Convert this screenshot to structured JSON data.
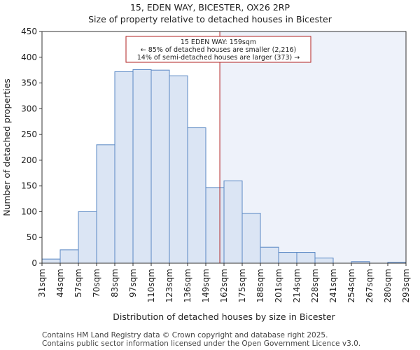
{
  "header": {
    "title": "15, EDEN WAY, BICESTER, OX26 2RP",
    "subtitle": "Size of property relative to detached houses in Bicester"
  },
  "footer": {
    "line1": "Contains HM Land Registry data © Crown copyright and database right 2025.",
    "line2": "Contains public sector information licensed under the Open Government Licence v3.0."
  },
  "chart_data": {
    "type": "bar",
    "xlabel": "Distribution of detached houses by size in Bicester",
    "ylabel": "Number of detached properties",
    "ylim": [
      0,
      450
    ],
    "yticks": [
      0,
      50,
      100,
      150,
      200,
      250,
      300,
      350,
      400,
      450
    ],
    "bin_edges": [
      31,
      44,
      57,
      70,
      83,
      97,
      110,
      123,
      136,
      149,
      162,
      175,
      188,
      201,
      214,
      228,
      241,
      254,
      267,
      280,
      293
    ],
    "tick_labels": [
      "31sqm",
      "44sqm",
      "57sqm",
      "70sqm",
      "83sqm",
      "97sqm",
      "110sqm",
      "123sqm",
      "136sqm",
      "149sqm",
      "162sqm",
      "175sqm",
      "188sqm",
      "201sqm",
      "214sqm",
      "228sqm",
      "241sqm",
      "254sqm",
      "267sqm",
      "280sqm",
      "293sqm"
    ],
    "values": [
      8,
      26,
      100,
      230,
      372,
      376,
      375,
      364,
      263,
      147,
      160,
      97,
      31,
      21,
      21,
      10,
      0,
      3,
      0,
      2
    ],
    "property_size": 159,
    "colors": {
      "bar_fill": "#dbe5f4",
      "bar_stroke": "#5a88c4",
      "marker_line": "#b22222",
      "shade": "#eef2fa"
    },
    "annotation": {
      "line1": "15 EDEN WAY: 159sqm",
      "line2": "← 85% of detached houses are smaller (2,216)",
      "line3": "14% of semi-detached houses are larger (373) →"
    }
  }
}
